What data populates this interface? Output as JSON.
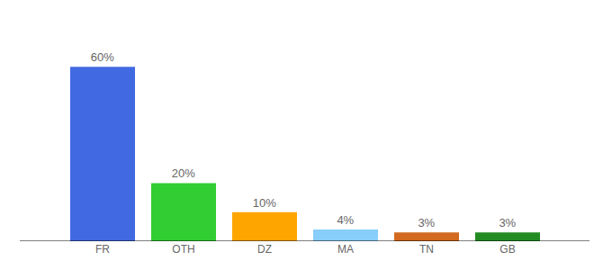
{
  "chart_data": {
    "type": "bar",
    "categories": [
      "FR",
      "OTH",
      "DZ",
      "MA",
      "TN",
      "GB"
    ],
    "values": [
      60,
      20,
      10,
      4,
      3,
      3
    ],
    "value_labels": [
      "60%",
      "20%",
      "10%",
      "4%",
      "3%",
      "3%"
    ],
    "colors": [
      "#4169e1",
      "#32cd32",
      "#ffa500",
      "#87cefa",
      "#d2691e",
      "#228b22"
    ],
    "data_labels": true,
    "tick_labels": "x",
    "grid": false
  }
}
